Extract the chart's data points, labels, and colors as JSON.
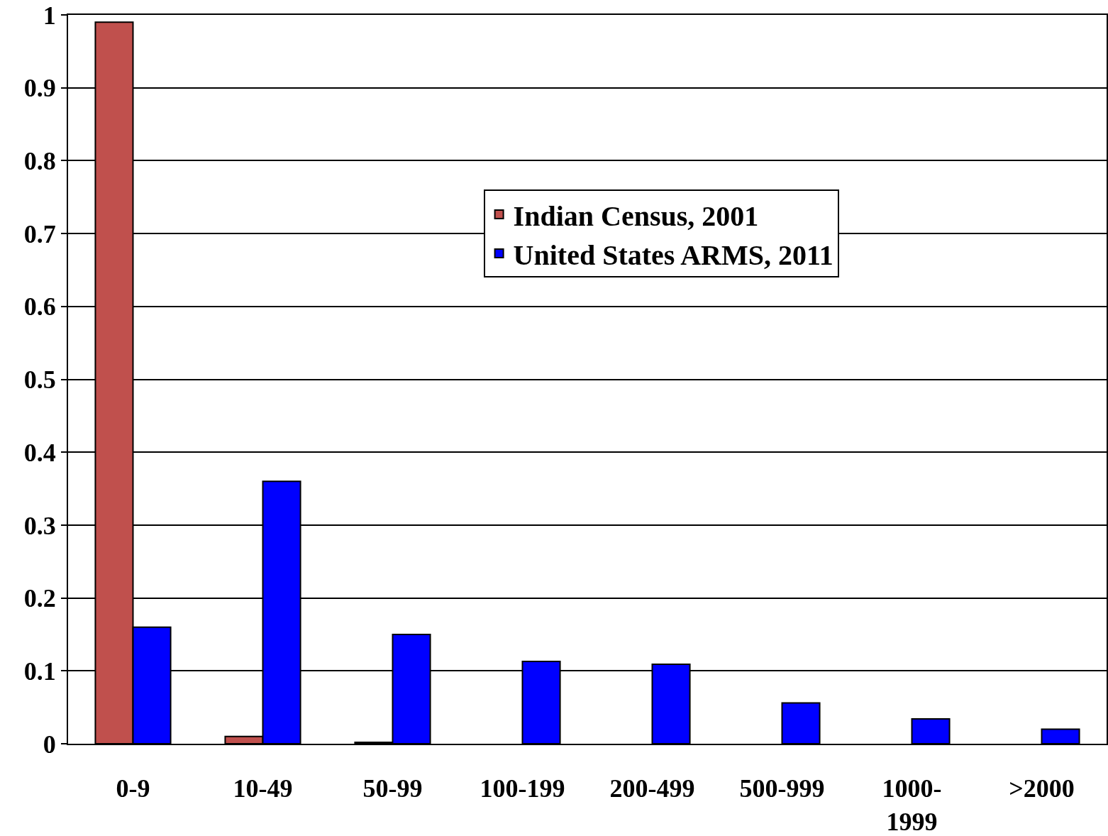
{
  "chart_data": {
    "type": "bar",
    "categories": [
      "0-9",
      "10-49",
      "50-99",
      "100-199",
      "200-499",
      "500-999",
      "1000-\n1999",
      ">2000"
    ],
    "series": [
      {
        "name": "Indian Census, 2001",
        "color": "#c0504d",
        "values": [
          0.99,
          0.01,
          0.002,
          0,
          0,
          0,
          0,
          0
        ]
      },
      {
        "name": "United States ARMS, 2011",
        "color": "#0000ff",
        "values": [
          0.16,
          0.36,
          0.15,
          0.113,
          0.109,
          0.056,
          0.034,
          0.02
        ]
      }
    ],
    "ylim": [
      0,
      1
    ],
    "yticks": [
      0,
      0.1,
      0.2,
      0.3,
      0.4,
      0.5,
      0.6,
      0.7,
      0.8,
      0.9,
      1
    ],
    "grid": "y",
    "legend": "top right"
  }
}
